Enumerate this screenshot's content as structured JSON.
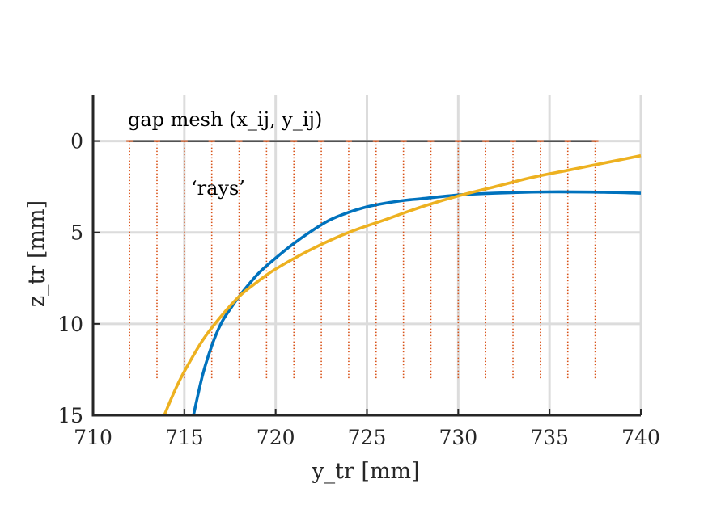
{
  "chart_data": {
    "type": "line",
    "title": "",
    "xlabel": "y_tr [mm]",
    "ylabel": "z_tr [mm]",
    "xlim": [
      710,
      740
    ],
    "ylim": [
      15,
      -2.5
    ],
    "y_axis_reversed": true,
    "x_ticks": [
      "710",
      "715",
      "720",
      "725",
      "730",
      "735",
      "740"
    ],
    "y_ticks": [
      "0",
      "5",
      "10",
      "15"
    ],
    "x_tick_values": [
      710,
      715,
      720,
      725,
      730,
      735,
      740
    ],
    "y_tick_values": [
      0,
      5,
      10,
      15
    ],
    "grid": true,
    "annotations": {
      "mesh_label": "gap mesh (x_ij, y_ij)",
      "rays_label": "‘rays’"
    },
    "gap_mesh": {
      "z": 0,
      "x_range": [
        712,
        737.5
      ],
      "color": "#000000"
    },
    "rays": {
      "x": [
        712,
        713.5,
        715,
        716.5,
        718,
        719.5,
        721,
        722.5,
        724,
        725.5,
        727,
        728.5,
        730,
        731.5,
        733,
        734.5,
        736,
        737.5
      ],
      "z_range": [
        0,
        13
      ],
      "color": "#d95319"
    },
    "series": [
      {
        "color": "#0072bd",
        "x": [
          715.5,
          716,
          716.5,
          717,
          717.5,
          718,
          719,
          720,
          721,
          722,
          723,
          724,
          725,
          726,
          727,
          728,
          730,
          732,
          735,
          738,
          740
        ],
        "y": [
          15,
          12.8,
          11.2,
          10,
          9.2,
          8.5,
          7.3,
          6.4,
          5.6,
          4.9,
          4.3,
          3.9,
          3.6,
          3.4,
          3.25,
          3.15,
          2.95,
          2.85,
          2.78,
          2.8,
          2.85
        ]
      },
      {
        "color": "#edb120",
        "x": [
          713.9,
          714.5,
          715,
          716,
          717,
          718,
          719,
          720,
          722,
          724,
          726,
          728,
          730,
          732,
          734,
          736,
          738,
          740
        ],
        "y": [
          15,
          13.6,
          12.6,
          10.9,
          9.6,
          8.5,
          7.7,
          7.0,
          5.9,
          5.0,
          4.3,
          3.6,
          3.0,
          2.5,
          2.0,
          1.6,
          1.2,
          0.8
        ]
      }
    ]
  }
}
